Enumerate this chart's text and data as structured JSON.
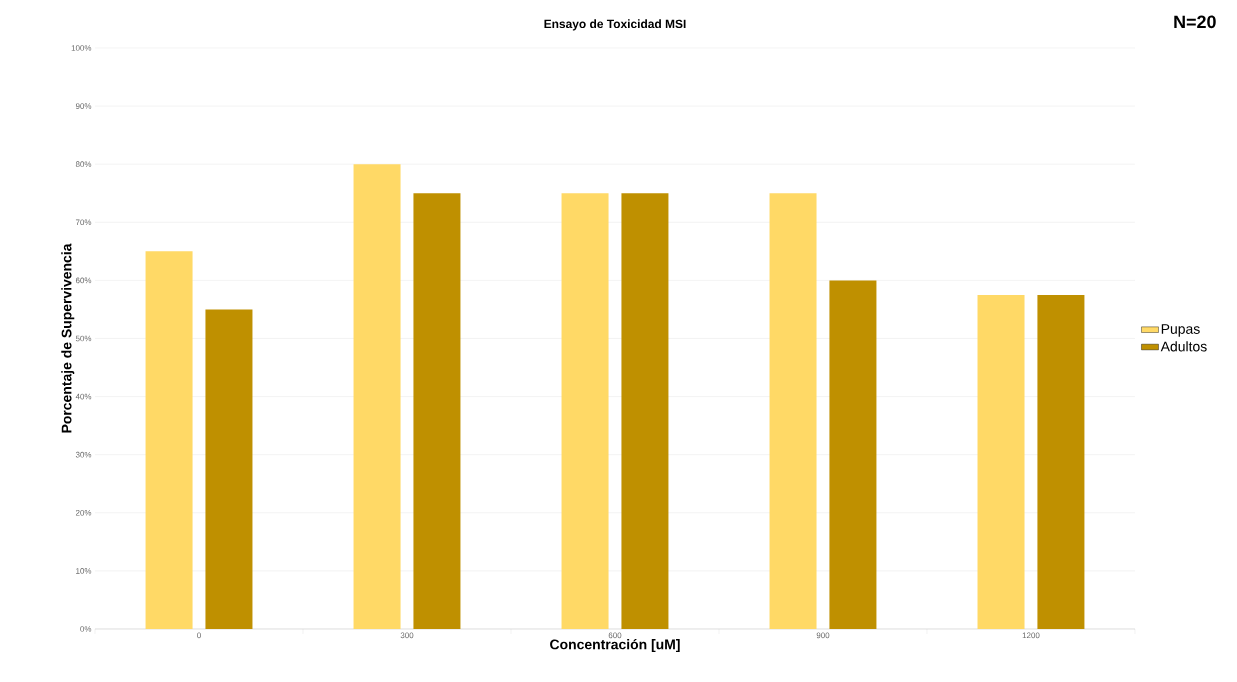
{
  "chart_data": {
    "type": "bar",
    "title": "Ensayo de Toxicidad MSI",
    "xlabel": "Concentración [uM]",
    "ylabel": "Porcentaje de Supervivencia",
    "annotations": [
      "N=20"
    ],
    "categories": [
      "0",
      "300",
      "600",
      "900",
      "1200"
    ],
    "series": [
      {
        "name": "Pupas",
        "color": "#ffd966",
        "values": [
          65,
          80,
          75,
          75,
          57.5
        ]
      },
      {
        "name": "Adultos",
        "color": "#bf9000",
        "values": [
          55,
          75,
          75,
          60,
          57.5
        ]
      }
    ],
    "ylim": [
      0,
      100
    ],
    "yticks": [
      {
        "value": 0,
        "label": "0%"
      },
      {
        "value": 10,
        "label": "10%"
      },
      {
        "value": 20,
        "label": "20%"
      },
      {
        "value": 30,
        "label": "30%"
      },
      {
        "value": 40,
        "label": "40%"
      },
      {
        "value": 50,
        "label": "50%"
      },
      {
        "value": 60,
        "label": "60%"
      },
      {
        "value": 70,
        "label": "70%"
      },
      {
        "value": 80,
        "label": "80%"
      },
      {
        "value": 90,
        "label": "90%"
      },
      {
        "value": 100,
        "label": "100%"
      }
    ],
    "grid": "y",
    "legend": "right"
  }
}
